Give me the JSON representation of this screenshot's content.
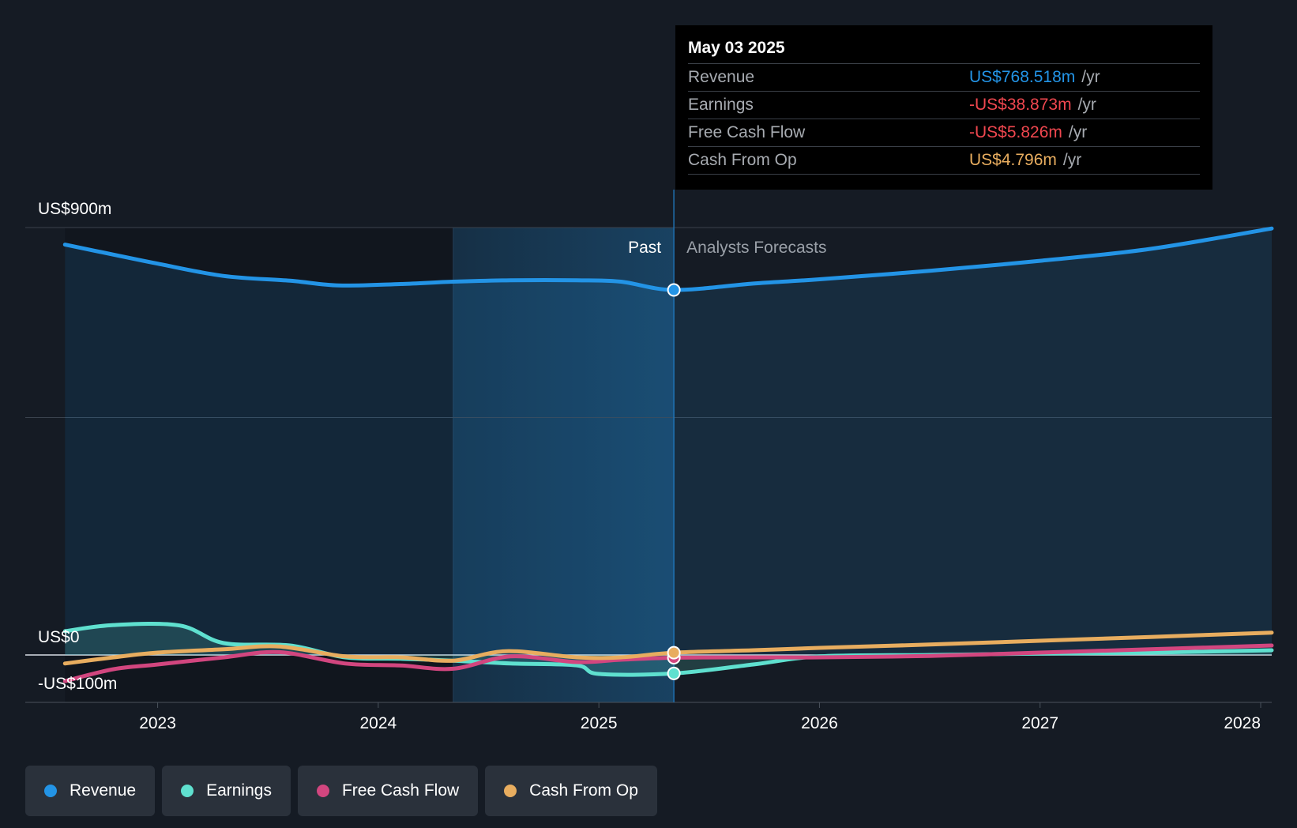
{
  "colors": {
    "revenue": "#2394e6",
    "earnings": "#5fe0cf",
    "free_cash_flow": "#d2467f",
    "cash_from_op": "#e8ad5f",
    "negative_value": "#f0474f",
    "background": "#151b24"
  },
  "chart_data": {
    "type": "area",
    "xlim": [
      2022.4,
      2028.05
    ],
    "ylim": [
      -100,
      900
    ],
    "y_tick_labels": [
      {
        "value": 900,
        "label": "US$900m"
      },
      {
        "value": 0,
        "label": "US$0"
      },
      {
        "value": -100,
        "label": "-US$100m"
      }
    ],
    "gridlines_y": [
      900,
      500,
      0
    ],
    "x_ticks": [
      {
        "value": 2023,
        "label": "2023"
      },
      {
        "value": 2024,
        "label": "2024"
      },
      {
        "value": 2025,
        "label": "2025"
      },
      {
        "value": 2026,
        "label": "2026"
      },
      {
        "value": 2027,
        "label": "2027"
      },
      {
        "value": 2028,
        "label": "2028"
      }
    ],
    "past_label": "Past",
    "forecast_label": "Analysts Forecasts",
    "highlight_band": [
      2024.34,
      2025.34
    ],
    "divider_x": 2025.34,
    "series": [
      {
        "name": "Revenue",
        "key": "revenue",
        "fill": true,
        "points": [
          [
            2022.58,
            864
          ],
          [
            2022.8,
            843
          ],
          [
            2023.0,
            824
          ],
          [
            2023.3,
            798
          ],
          [
            2023.6,
            788
          ],
          [
            2023.82,
            778
          ],
          [
            2024.1,
            781
          ],
          [
            2024.34,
            786
          ],
          [
            2024.6,
            789
          ],
          [
            2024.9,
            789
          ],
          [
            2025.1,
            786
          ],
          [
            2025.34,
            768.5
          ],
          [
            2025.7,
            782
          ],
          [
            2026.0,
            791
          ],
          [
            2026.5,
            809
          ],
          [
            2027.0,
            830
          ],
          [
            2027.5,
            855
          ],
          [
            2028.05,
            898
          ]
        ]
      },
      {
        "name": "Earnings",
        "key": "earnings",
        "fill": true,
        "points": [
          [
            2022.58,
            50
          ],
          [
            2022.8,
            63
          ],
          [
            2023.1,
            62
          ],
          [
            2023.3,
            25
          ],
          [
            2023.6,
            20
          ],
          [
            2023.85,
            -5
          ],
          [
            2024.1,
            -8
          ],
          [
            2024.34,
            -12
          ],
          [
            2024.6,
            -18
          ],
          [
            2024.9,
            -22
          ],
          [
            2025.0,
            -40
          ],
          [
            2025.34,
            -38.9
          ],
          [
            2025.7,
            -20
          ],
          [
            2026.0,
            -3
          ],
          [
            2026.5,
            0
          ],
          [
            2027.0,
            3
          ],
          [
            2027.5,
            5
          ],
          [
            2028.05,
            10
          ]
        ]
      },
      {
        "name": "Free Cash Flow",
        "key": "free_cash_flow",
        "fill": false,
        "points": [
          [
            2022.58,
            -55
          ],
          [
            2022.8,
            -30
          ],
          [
            2023.0,
            -20
          ],
          [
            2023.3,
            -5
          ],
          [
            2023.55,
            6
          ],
          [
            2023.85,
            -18
          ],
          [
            2024.1,
            -22
          ],
          [
            2024.34,
            -29
          ],
          [
            2024.6,
            -3
          ],
          [
            2024.9,
            -15
          ],
          [
            2025.1,
            -10
          ],
          [
            2025.34,
            -5.8
          ],
          [
            2025.7,
            -5
          ],
          [
            2026.0,
            -5
          ],
          [
            2026.5,
            -2
          ],
          [
            2027.0,
            5
          ],
          [
            2027.5,
            12
          ],
          [
            2028.05,
            20
          ]
        ]
      },
      {
        "name": "Cash From Op",
        "key": "cash_from_op",
        "fill": false,
        "points": [
          [
            2022.58,
            -18
          ],
          [
            2022.8,
            -5
          ],
          [
            2023.0,
            5
          ],
          [
            2023.3,
            12
          ],
          [
            2023.55,
            18
          ],
          [
            2023.85,
            -3
          ],
          [
            2024.1,
            -5
          ],
          [
            2024.34,
            -12
          ],
          [
            2024.58,
            8
          ],
          [
            2024.9,
            -5
          ],
          [
            2025.1,
            -5
          ],
          [
            2025.34,
            4.8
          ],
          [
            2025.7,
            10
          ],
          [
            2026.0,
            15
          ],
          [
            2026.5,
            22
          ],
          [
            2027.0,
            30
          ],
          [
            2027.5,
            38
          ],
          [
            2028.05,
            47
          ]
        ]
      }
    ],
    "markers": [
      {
        "series": "revenue",
        "x": 2025.34,
        "y": 768.5
      },
      {
        "series": "earnings",
        "x": 2025.34,
        "y": -38.9
      },
      {
        "series": "free_cash_flow",
        "x": 2025.34,
        "y": -5.8
      },
      {
        "series": "cash_from_op",
        "x": 2025.34,
        "y": 4.8
      }
    ]
  },
  "tooltip": {
    "date": "May 03 2025",
    "unit": "/yr",
    "rows": [
      {
        "label": "Revenue",
        "value": "US$768.518m",
        "color": "#2394e6"
      },
      {
        "label": "Earnings",
        "value": "-US$38.873m",
        "color": "#f0474f"
      },
      {
        "label": "Free Cash Flow",
        "value": "-US$5.826m",
        "color": "#f0474f"
      },
      {
        "label": "Cash From Op",
        "value": "US$4.796m",
        "color": "#e8ad5f"
      }
    ]
  },
  "legend": {
    "items": [
      {
        "label": "Revenue",
        "color": "#2394e6"
      },
      {
        "label": "Earnings",
        "color": "#5fe0cf"
      },
      {
        "label": "Free Cash Flow",
        "color": "#d2467f"
      },
      {
        "label": "Cash From Op",
        "color": "#e8ad5f"
      }
    ]
  }
}
